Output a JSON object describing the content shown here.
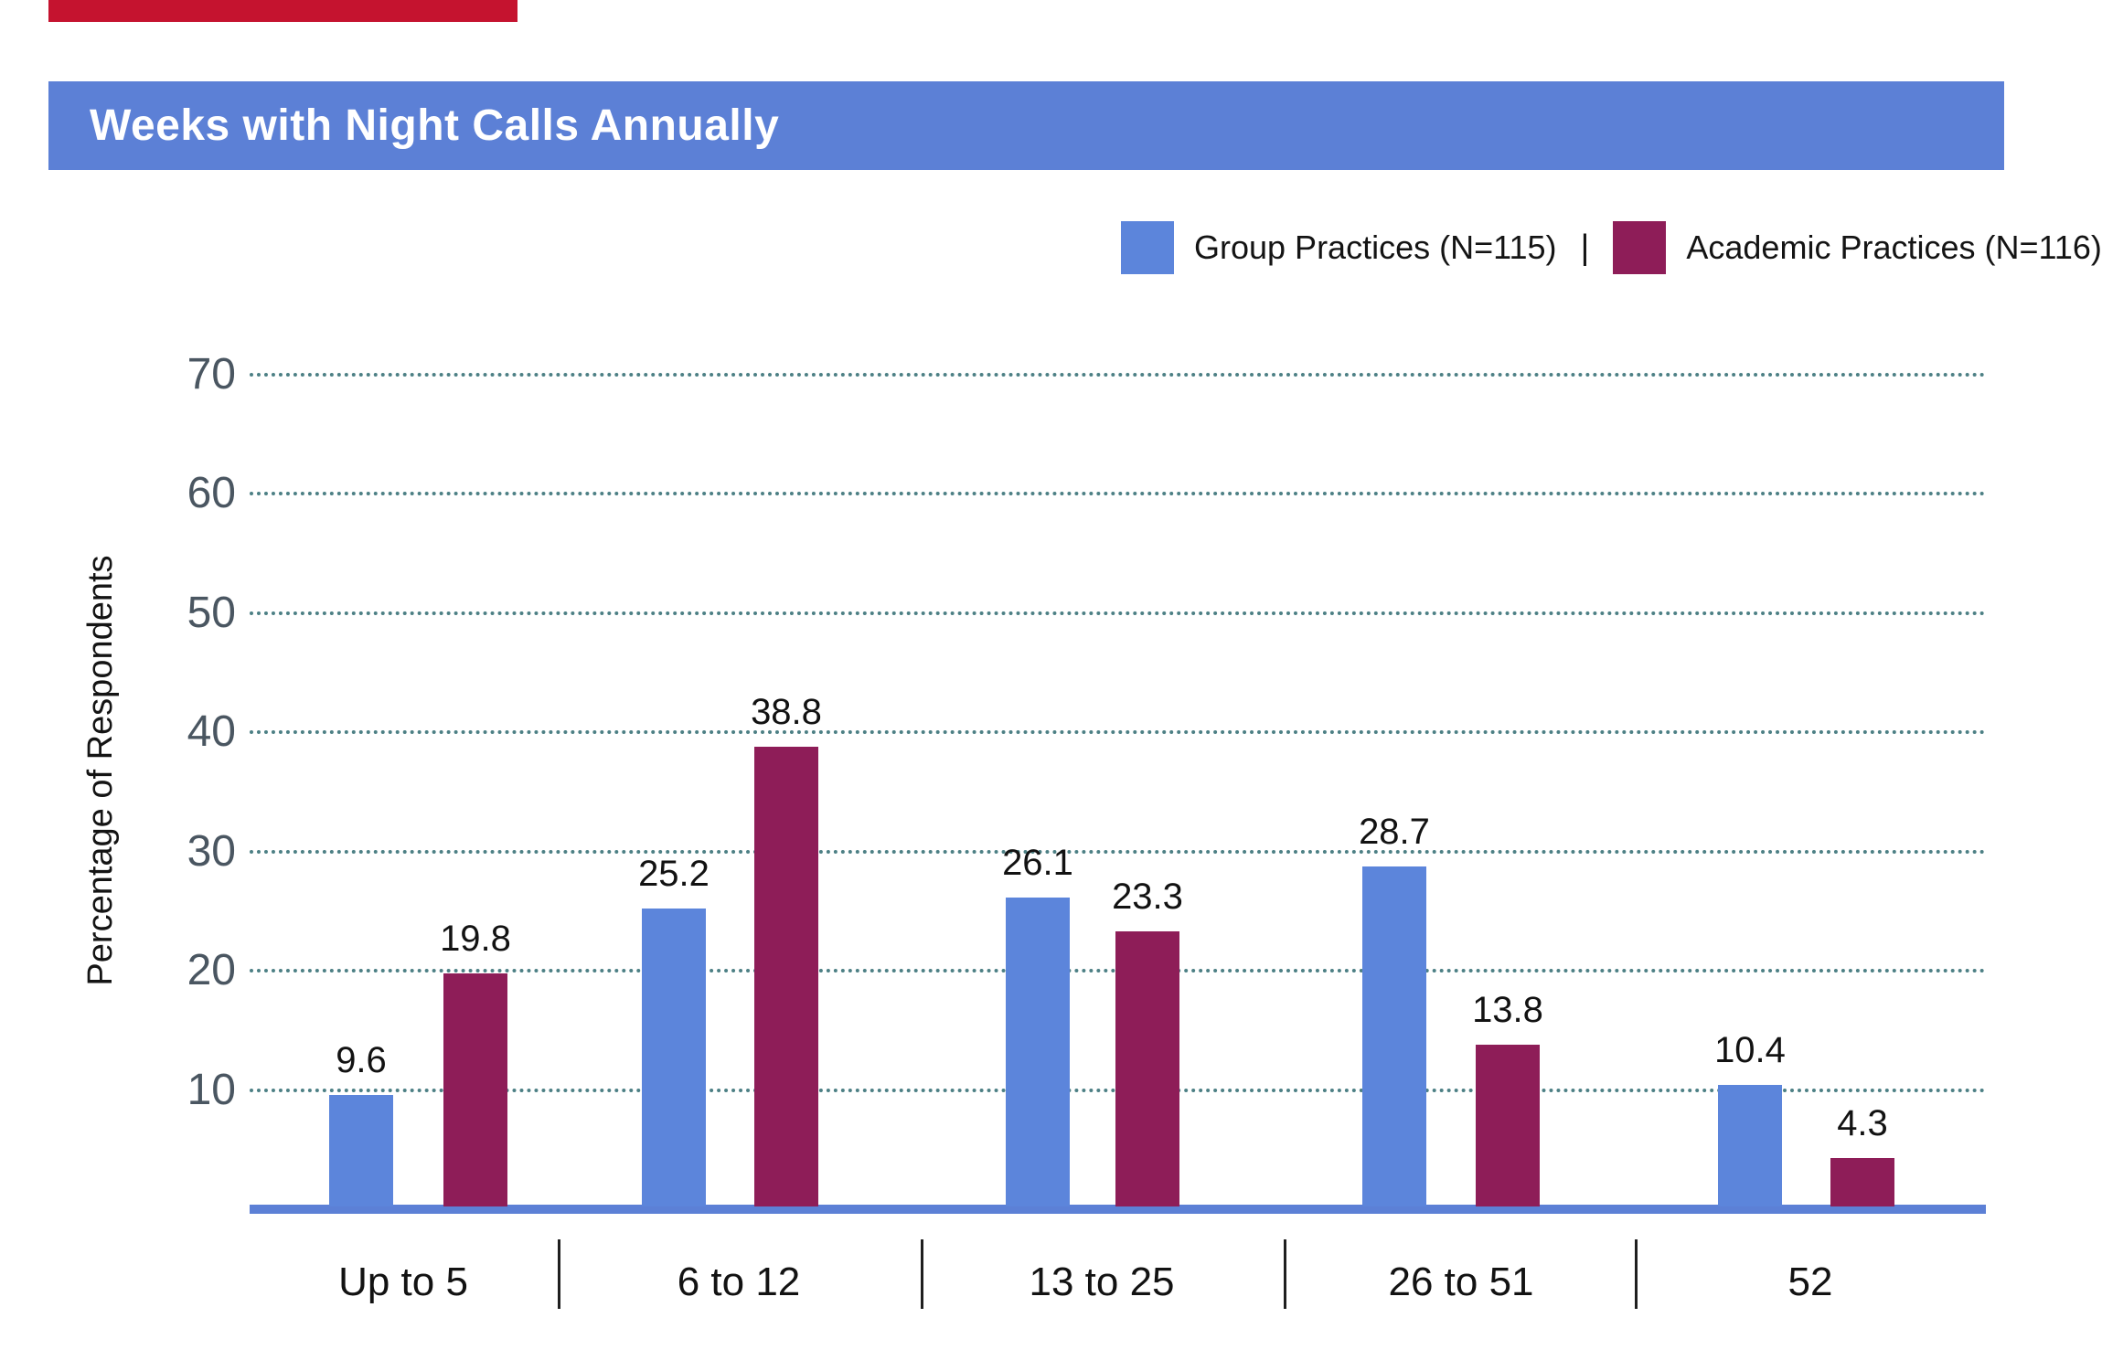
{
  "accent_strip": {
    "color": "#C5132F"
  },
  "title_bar": {
    "title": "Weeks with Night Calls Annually",
    "bg_color": "#5C80D6",
    "text_color": "#FFFFFF"
  },
  "legend": {
    "separator": "|",
    "items": [
      {
        "label": "Group Practices (N=115)",
        "color": "#5C85DB"
      },
      {
        "label": "Academic Practices (N=116)",
        "color": "#8E1D58"
      }
    ]
  },
  "chart_data": {
    "type": "bar",
    "title": "Weeks with Night Calls Annually",
    "categories": [
      "Up to 5",
      "6 to 12",
      "13 to 25",
      "26 to 51",
      "52"
    ],
    "series": [
      {
        "name": "Group Practices (N=115)",
        "color": "#5C85DB",
        "values": [
          9.6,
          25.2,
          26.1,
          28.7,
          10.4
        ]
      },
      {
        "name": "Academic Practices (N=116)",
        "color": "#8E1D58",
        "values": [
          19.8,
          38.8,
          23.3,
          13.8,
          4.3
        ]
      }
    ],
    "xlabel": "",
    "ylabel": "Percentage of Respondents",
    "yticks": [
      10,
      20,
      30,
      40,
      50,
      60,
      70
    ],
    "ylim": [
      0,
      75
    ],
    "grid": "dotted-horizontal",
    "legend_position": "top-right",
    "value_labels": true,
    "baseline_color": "#5C80D6"
  }
}
